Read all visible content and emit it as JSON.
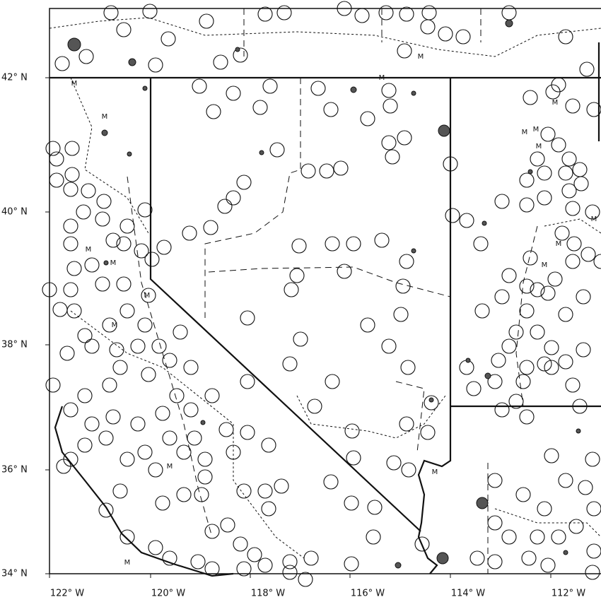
{
  "map": {
    "lat_labels": [
      "42° N",
      "40° N",
      "38° N",
      "36° N",
      "34° N"
    ],
    "lon_labels": [
      "122° W",
      "120° W",
      "118° W",
      "116° W",
      "114° W",
      "112° W"
    ],
    "marker_label": "M"
  }
}
